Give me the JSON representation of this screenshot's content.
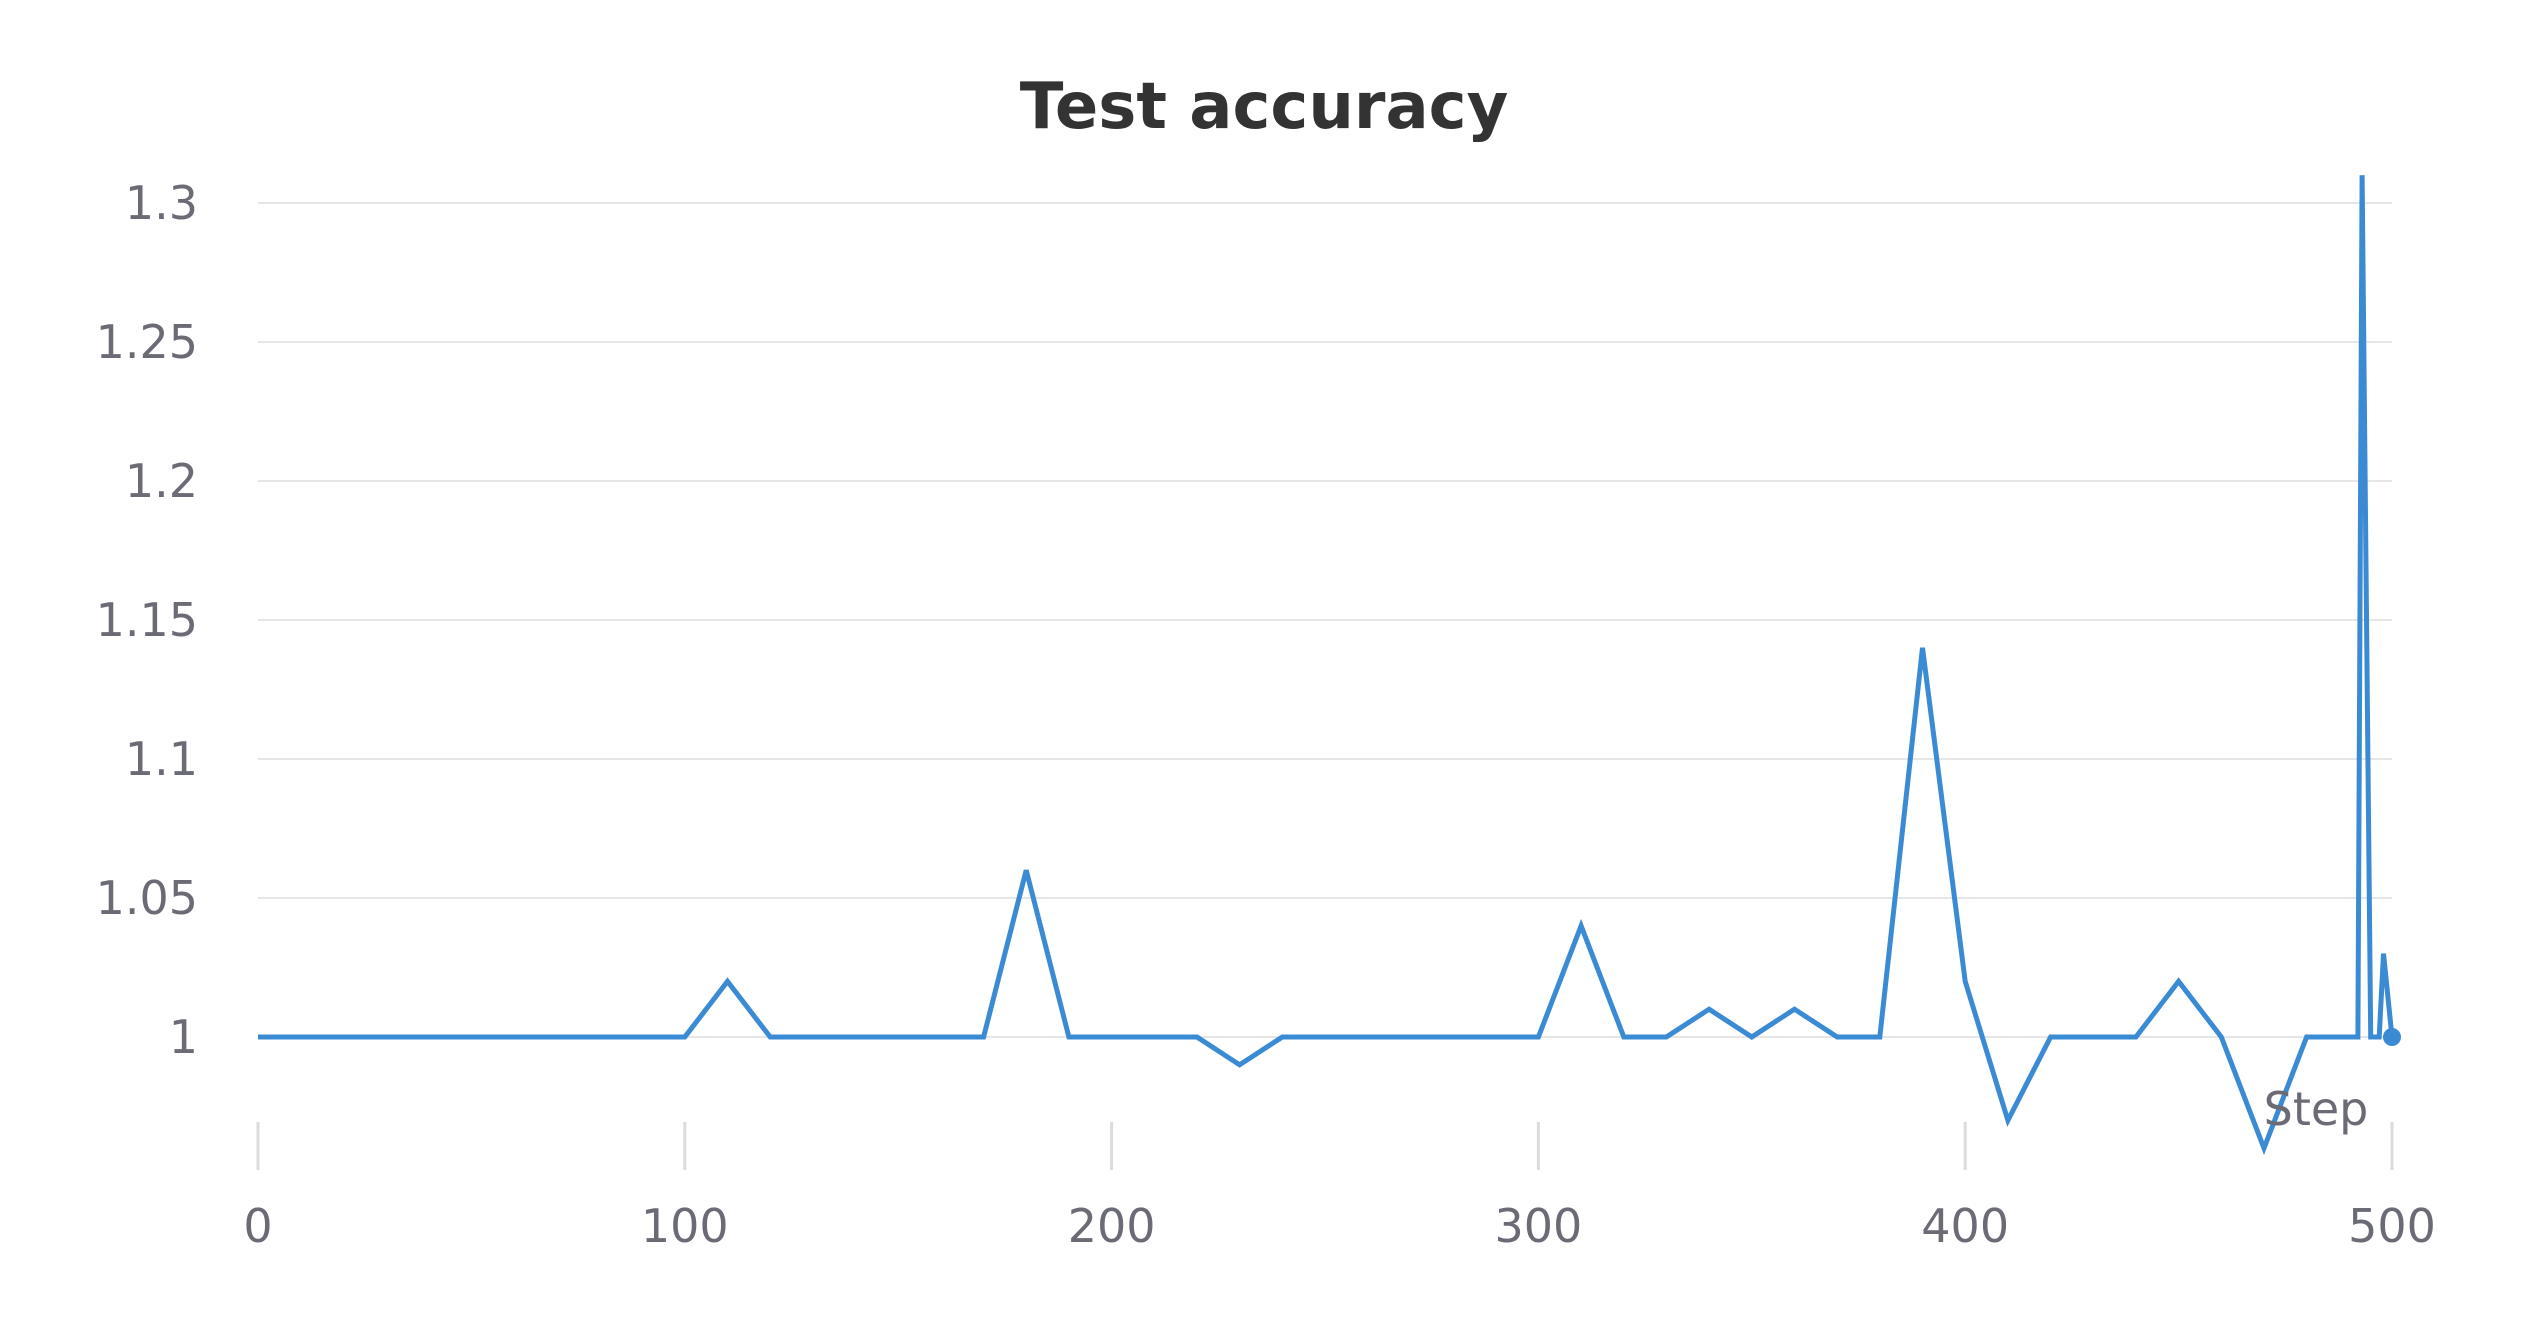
{
  "chart_data": {
    "type": "line",
    "title": "Test accuracy",
    "xlabel": "Step",
    "ylabel": "",
    "xlim": [
      0,
      500
    ],
    "ylim": [
      0.95,
      1.31
    ],
    "xticks": [
      0,
      100,
      200,
      300,
      400,
      500
    ],
    "yticks": [
      1,
      1.05,
      1.1,
      1.15,
      1.2,
      1.25,
      1.3
    ],
    "ytick_labels": [
      "1",
      "1.05",
      "1.1",
      "1.15",
      "1.2",
      "1.25",
      "1.3"
    ],
    "grid": true,
    "colors": {
      "series": "#3b8bd4",
      "title": "#333333",
      "ticks": "#6b6b76",
      "grid": "#e6e6e6"
    },
    "series": [
      {
        "x": [
          0,
          10,
          20,
          30,
          40,
          50,
          60,
          70,
          80,
          90,
          100,
          110,
          120,
          130,
          140,
          150,
          160,
          170,
          180,
          190,
          200,
          210,
          220,
          230,
          240,
          250,
          260,
          270,
          280,
          290,
          300,
          310,
          320,
          330,
          340,
          350,
          360,
          370,
          380,
          390,
          400,
          410,
          420,
          430,
          440,
          450,
          460,
          470,
          480,
          490,
          492,
          493,
          495,
          497,
          498,
          500
        ],
        "y": [
          1,
          1,
          1,
          1,
          1,
          1,
          1,
          1,
          1,
          1,
          1,
          1.02,
          1,
          1,
          1,
          1,
          1,
          1,
          1.06,
          1,
          1,
          1,
          1,
          0.99,
          1,
          1,
          1,
          1,
          1,
          1,
          1,
          1.04,
          1,
          1,
          1.01,
          1,
          1.01,
          1,
          1,
          1.14,
          1.02,
          0.97,
          1,
          1,
          1,
          1.02,
          1,
          0.96,
          1,
          1,
          1,
          1.31,
          1,
          1,
          1.03,
          1
        ]
      }
    ]
  }
}
